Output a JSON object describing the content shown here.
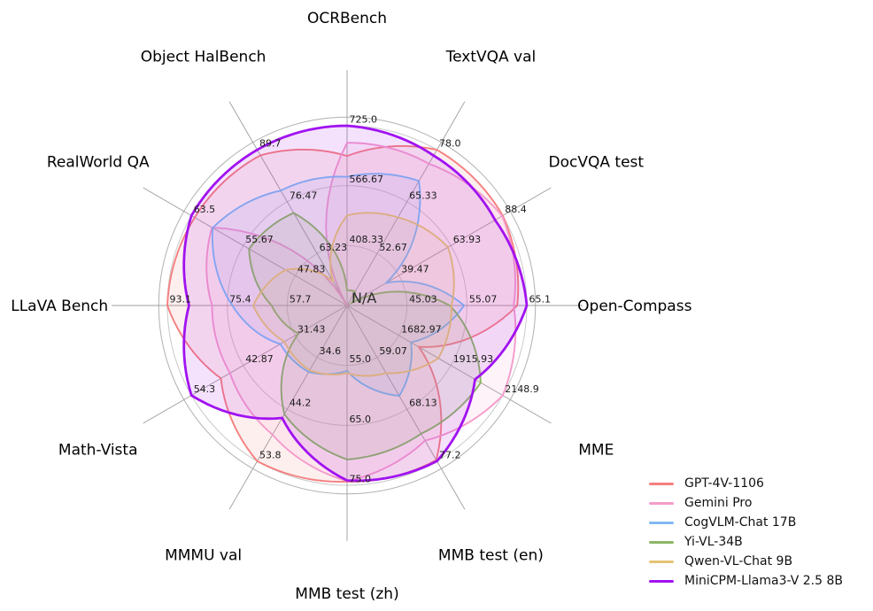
{
  "figure": {
    "background": "#ffffff",
    "grid_color": "#c9c9c9",
    "frame_color": "#b0b0b0",
    "spoke_color": "#9c9c9c",
    "tick_text_color": "#1a1a1a",
    "title_text_color": "#000000"
  },
  "center_label": "N/A",
  "chart_data": {
    "type": "radar",
    "gridlines": "circular, at 1/3, 2/3 and 3/3 of radius, plus outer frame ring",
    "legend_position": "bottom-right",
    "axes": [
      {
        "label": "OCRBench",
        "min": 250,
        "max": 725,
        "tick_labels": [
          "725.0",
          "566.67",
          "408.33"
        ]
      },
      {
        "label": "TextVQA val",
        "min": 40,
        "max": 78.0,
        "tick_labels": [
          "78.0",
          "65.33",
          "52.67"
        ]
      },
      {
        "label": "DocVQA test",
        "min": 15,
        "max": 88.4,
        "tick_labels": [
          "88.4",
          "63.93",
          "39.47"
        ]
      },
      {
        "label": "Open-Compass",
        "min": 35,
        "max": 65.1,
        "tick_labels": [
          "65.1",
          "55.07",
          "45.03"
        ]
      },
      {
        "label": "MME",
        "min": 1450,
        "max": 2148.9,
        "tick_labels": [
          "2148.9",
          "1915.93",
          "1682.97"
        ]
      },
      {
        "label": "MMB test (en)",
        "min": 50,
        "max": 77.2,
        "tick_labels": [
          "77.2",
          "68.13",
          "59.07"
        ]
      },
      {
        "label": "MMB test (zh)",
        "min": 45,
        "max": 75.0,
        "tick_labels": [
          "75.0",
          "65.0",
          "55.0"
        ]
      },
      {
        "label": "MMMU val",
        "min": 25,
        "max": 53.8,
        "tick_labels": [
          "53.8",
          "44.2",
          "34.6"
        ]
      },
      {
        "label": "Math-Vista",
        "min": 20,
        "max": 54.3,
        "tick_labels": [
          "54.3",
          "42.87",
          "31.43"
        ]
      },
      {
        "label": "LLaVA Bench",
        "min": 40,
        "max": 93.1,
        "tick_labels": [
          "93.1",
          "75.4",
          "57.7"
        ]
      },
      {
        "label": "RealWorld QA",
        "min": 40,
        "max": 63.5,
        "tick_labels": [
          "63.5",
          "55.67",
          "47.83"
        ]
      },
      {
        "label": "Object HalBench",
        "min": 50,
        "max": 89.7,
        "tick_labels": [
          "89.7",
          "76.47",
          "63.23"
        ]
      }
    ],
    "series": [
      {
        "name": "GPT-4V-1106",
        "color": "#f57f7f",
        "line_width": 1.9,
        "values": [
          645,
          78.0,
          88.4,
          63.5,
          1771.5,
          77.0,
          74.4,
          53.8,
          47.8,
          93.1,
          63.0,
          88.3
        ]
      },
      {
        "name": "Gemini Pro",
        "color": "#f49bcb",
        "line_width": 1.9,
        "values": [
          680,
          74.6,
          88.1,
          62.9,
          2148.9,
          73.6,
          74.3,
          48.9,
          45.8,
          79.9,
          60.4,
          null
        ]
      },
      {
        "name": "CogVLM-Chat 17B",
        "color": "#80b9f2",
        "line_width": 1.9,
        "values": [
          590,
          70.4,
          33.3,
          54.6,
          1736.6,
          65.8,
          55.9,
          37.3,
          34.7,
          73.9,
          60.3,
          79.3
        ]
      },
      {
        "name": "Yi-VL-34B",
        "color": "#8db566",
        "line_width": 1.9,
        "values": [
          290,
          43.4,
          16.9,
          52.2,
          2050.2,
          72.4,
          70.7,
          45.1,
          30.7,
          62.3,
          54.8,
          73.6
        ]
      },
      {
        "name": "Qwen-VL-Chat 9B",
        "color": "#e4c474",
        "line_width": 1.9,
        "values": [
          488,
          61.5,
          62.6,
          52.5,
          1860.0,
          61.8,
          56.3,
          37.0,
          33.8,
          67.7,
          49.3,
          56.2
        ]
      },
      {
        "name": "MiniCPM-Llama3-V 2.5 8B",
        "color": "#a112f0",
        "line_width": 2.8,
        "values": [
          725,
          76.6,
          84.8,
          65.1,
          2024.6,
          77.2,
          74.2,
          45.8,
          54.3,
          86.7,
          63.5,
          89.7
        ]
      }
    ]
  }
}
